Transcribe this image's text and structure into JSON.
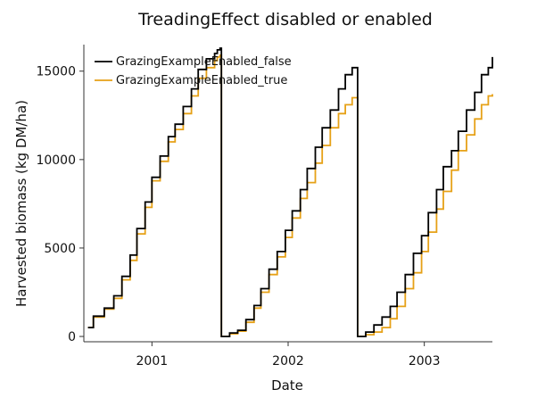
{
  "chart_data": {
    "type": "line",
    "title": "TreadingEffect disabled or enabled",
    "xlabel": "Date",
    "ylabel": "Harvested biomass (kg DM/ha)",
    "xlim": [
      2000.5,
      2003.5
    ],
    "ylim": [
      -300,
      16500
    ],
    "x_ticks": [
      2001,
      2002,
      2003
    ],
    "x_tick_labels": [
      "2001",
      "2002",
      "2003"
    ],
    "y_ticks": [
      0,
      5000,
      10000,
      15000
    ],
    "y_tick_labels": [
      "0",
      "5000",
      "10000",
      "15000"
    ],
    "grid": false,
    "legend_position": "top-left",
    "step_interval_years": 0.0833,
    "series": [
      {
        "name": "GrazingExampleEnabled_false",
        "color": "#000000",
        "points": [
          [
            2000.53,
            500
          ],
          [
            2000.57,
            1150
          ],
          [
            2000.65,
            1600
          ],
          [
            2000.72,
            2300
          ],
          [
            2000.78,
            3400
          ],
          [
            2000.84,
            4600
          ],
          [
            2000.89,
            6100
          ],
          [
            2000.95,
            7600
          ],
          [
            2001.0,
            9000
          ],
          [
            2001.06,
            10200
          ],
          [
            2001.12,
            11300
          ],
          [
            2001.17,
            12000
          ],
          [
            2001.23,
            13000
          ],
          [
            2001.29,
            14000
          ],
          [
            2001.34,
            15100
          ],
          [
            2001.4,
            15700
          ],
          [
            2001.46,
            16000
          ],
          [
            2001.48,
            16200
          ],
          [
            2001.5,
            16300
          ],
          [
            2001.51,
            0
          ],
          [
            2001.57,
            200
          ],
          [
            2001.63,
            350
          ],
          [
            2001.69,
            950
          ],
          [
            2001.75,
            1750
          ],
          [
            2001.8,
            2700
          ],
          [
            2001.86,
            3800
          ],
          [
            2001.92,
            4800
          ],
          [
            2001.98,
            6000
          ],
          [
            2002.03,
            7100
          ],
          [
            2002.09,
            8300
          ],
          [
            2002.14,
            9500
          ],
          [
            2002.2,
            10700
          ],
          [
            2002.25,
            11800
          ],
          [
            2002.31,
            12800
          ],
          [
            2002.37,
            14000
          ],
          [
            2002.42,
            14800
          ],
          [
            2002.47,
            15200
          ],
          [
            2002.5,
            15200
          ],
          [
            2002.51,
            0
          ],
          [
            2002.57,
            250
          ],
          [
            2002.63,
            650
          ],
          [
            2002.69,
            1100
          ],
          [
            2002.75,
            1700
          ],
          [
            2002.8,
            2500
          ],
          [
            2002.86,
            3500
          ],
          [
            2002.92,
            4700
          ],
          [
            2002.98,
            5700
          ],
          [
            2003.03,
            7000
          ],
          [
            2003.09,
            8300
          ],
          [
            2003.14,
            9600
          ],
          [
            2003.2,
            10500
          ],
          [
            2003.25,
            11600
          ],
          [
            2003.31,
            12800
          ],
          [
            2003.37,
            13800
          ],
          [
            2003.42,
            14800
          ],
          [
            2003.47,
            15200
          ],
          [
            2003.5,
            15800
          ]
        ]
      },
      {
        "name": "GrazingExampleEnabled_true",
        "color": "#e6a117",
        "points": [
          [
            2000.53,
            500
          ],
          [
            2000.57,
            1100
          ],
          [
            2000.65,
            1550
          ],
          [
            2000.72,
            2150
          ],
          [
            2000.78,
            3200
          ],
          [
            2000.84,
            4300
          ],
          [
            2000.89,
            5800
          ],
          [
            2000.95,
            7300
          ],
          [
            2001.0,
            8800
          ],
          [
            2001.06,
            9900
          ],
          [
            2001.12,
            11000
          ],
          [
            2001.17,
            11700
          ],
          [
            2001.23,
            12600
          ],
          [
            2001.29,
            13600
          ],
          [
            2001.34,
            14600
          ],
          [
            2001.4,
            15200
          ],
          [
            2001.46,
            15600
          ],
          [
            2001.48,
            15800
          ],
          [
            2001.5,
            15900
          ],
          [
            2001.51,
            0
          ],
          [
            2001.57,
            150
          ],
          [
            2001.63,
            300
          ],
          [
            2001.69,
            800
          ],
          [
            2001.75,
            1600
          ],
          [
            2001.8,
            2500
          ],
          [
            2001.86,
            3500
          ],
          [
            2001.92,
            4500
          ],
          [
            2001.98,
            5600
          ],
          [
            2002.03,
            6700
          ],
          [
            2002.09,
            7800
          ],
          [
            2002.14,
            8700
          ],
          [
            2002.2,
            9800
          ],
          [
            2002.25,
            10800
          ],
          [
            2002.31,
            11800
          ],
          [
            2002.37,
            12600
          ],
          [
            2002.42,
            13100
          ],
          [
            2002.47,
            13500
          ],
          [
            2002.5,
            13500
          ],
          [
            2002.51,
            0
          ],
          [
            2002.57,
            100
          ],
          [
            2002.63,
            250
          ],
          [
            2002.69,
            500
          ],
          [
            2002.75,
            1000
          ],
          [
            2002.8,
            1700
          ],
          [
            2002.86,
            2700
          ],
          [
            2002.92,
            3600
          ],
          [
            2002.98,
            4800
          ],
          [
            2003.03,
            5900
          ],
          [
            2003.09,
            7200
          ],
          [
            2003.14,
            8200
          ],
          [
            2003.2,
            9400
          ],
          [
            2003.25,
            10500
          ],
          [
            2003.31,
            11400
          ],
          [
            2003.37,
            12300
          ],
          [
            2003.42,
            13100
          ],
          [
            2003.47,
            13600
          ],
          [
            2003.5,
            13700
          ]
        ]
      }
    ]
  }
}
